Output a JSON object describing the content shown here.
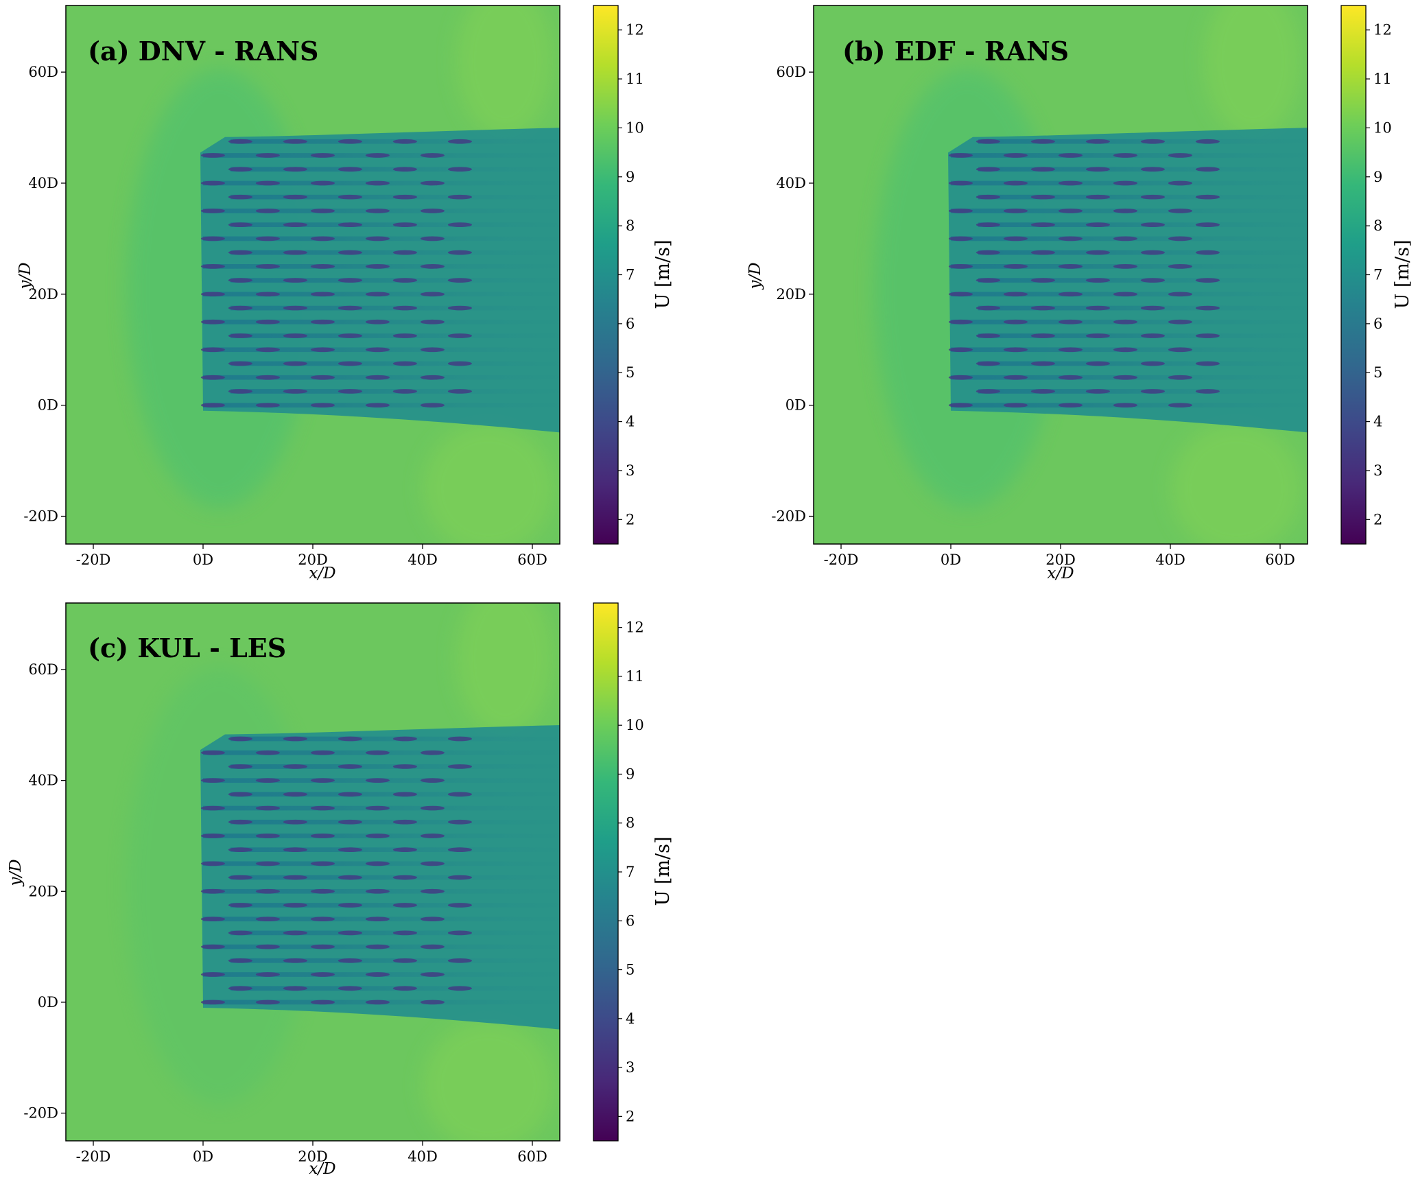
{
  "figure": {
    "colormap": "viridis",
    "colors": {
      "freestream_high": "#7ccf59",
      "freestream": "#6cc75e",
      "induction": "#57c26a",
      "wake": "#27918a",
      "wake_deep": "#1f7a8c",
      "turbine_core": "#433d84"
    }
  },
  "chart_data": [
    {
      "type": "heatmap",
      "id": "a",
      "title": "(a) DNV - RANS",
      "xlabel": "x/D",
      "ylabel": "y/D",
      "xlim": [
        -25,
        65
      ],
      "ylim": [
        -25,
        72
      ],
      "xticks": [
        -20,
        0,
        20,
        40,
        60
      ],
      "xtick_labels": [
        "-20D",
        "0D",
        "20D",
        "40D",
        "60D"
      ],
      "yticks": [
        -20,
        0,
        20,
        40,
        60
      ],
      "ytick_labels": [
        "-20D",
        "0D",
        "20D",
        "40D",
        "60D"
      ],
      "colorbar": {
        "label": "U [m/s]",
        "range": [
          1.5,
          12.5
        ],
        "ticks": [
          2,
          3,
          4,
          5,
          6,
          7,
          8,
          9,
          10,
          11,
          12
        ],
        "tick_labels": [
          "2",
          "3",
          "4",
          "5",
          "6",
          "7",
          "8",
          "9",
          "10",
          "11",
          "12"
        ]
      },
      "farm": {
        "rows_y": [
          0,
          2.5,
          5,
          7.5,
          10,
          12.5,
          15,
          17.5,
          20,
          22.5,
          25,
          27.5,
          30,
          32.5,
          35,
          37.5,
          40,
          42.5,
          45,
          47.5
        ],
        "turbine_x": [
          0,
          10,
          20,
          30,
          40
        ],
        "stagger_x": 5,
        "freestream_U": 9.6,
        "wake_U": 7.5,
        "rotor_U": 4.2
      }
    },
    {
      "type": "heatmap",
      "id": "b",
      "title": "(b) EDF - RANS",
      "xlabel": "x/D",
      "ylabel": "y/D",
      "xlim": [
        -25,
        65
      ],
      "ylim": [
        -25,
        72
      ],
      "xticks": [
        -20,
        0,
        20,
        40,
        60
      ],
      "xtick_labels": [
        "-20D",
        "0D",
        "20D",
        "40D",
        "60D"
      ],
      "yticks": [
        -20,
        0,
        20,
        40,
        60
      ],
      "ytick_labels": [
        "-20D",
        "0D",
        "20D",
        "40D",
        "60D"
      ],
      "colorbar": {
        "label": "U [m/s]",
        "range": [
          1.5,
          12.5
        ],
        "ticks": [
          2,
          3,
          4,
          5,
          6,
          7,
          8,
          9,
          10,
          11,
          12
        ],
        "tick_labels": [
          "2",
          "3",
          "4",
          "5",
          "6",
          "7",
          "8",
          "9",
          "10",
          "11",
          "12"
        ]
      },
      "farm": {
        "rows_y": [
          0,
          2.5,
          5,
          7.5,
          10,
          12.5,
          15,
          17.5,
          20,
          22.5,
          25,
          27.5,
          30,
          32.5,
          35,
          37.5,
          40,
          42.5,
          45,
          47.5
        ],
        "turbine_x": [
          0,
          10,
          20,
          30,
          40
        ],
        "stagger_x": 5,
        "freestream_U": 9.4,
        "wake_U": 7.6,
        "rotor_U": 4.4
      }
    },
    {
      "type": "heatmap",
      "id": "c",
      "title": "(c) KUL - LES",
      "xlabel": "x/D",
      "ylabel": "y/D",
      "xlim": [
        -25,
        65
      ],
      "ylim": [
        -25,
        72
      ],
      "xticks": [
        -20,
        0,
        20,
        40,
        60
      ],
      "xtick_labels": [
        "-20D",
        "0D",
        "20D",
        "40D",
        "60D"
      ],
      "yticks": [
        -20,
        0,
        20,
        40,
        60
      ],
      "ytick_labels": [
        "-20D",
        "0D",
        "20D",
        "40D",
        "60D"
      ],
      "colorbar": {
        "label": "U [m/s]",
        "range": [
          1.5,
          12.5
        ],
        "ticks": [
          2,
          3,
          4,
          5,
          6,
          7,
          8,
          9,
          10,
          11,
          12
        ],
        "tick_labels": [
          "2",
          "3",
          "4",
          "5",
          "6",
          "7",
          "8",
          "9",
          "10",
          "11",
          "12"
        ]
      },
      "farm": {
        "rows_y": [
          0,
          2.5,
          5,
          7.5,
          10,
          12.5,
          15,
          17.5,
          20,
          22.5,
          25,
          27.5,
          30,
          32.5,
          35,
          37.5,
          40,
          42.5,
          45,
          47.5
        ],
        "turbine_x": [
          0,
          10,
          20,
          30,
          40
        ],
        "stagger_x": 5,
        "freestream_U": 9.5,
        "wake_U": 7.7,
        "rotor_U": 4.0
      }
    }
  ]
}
